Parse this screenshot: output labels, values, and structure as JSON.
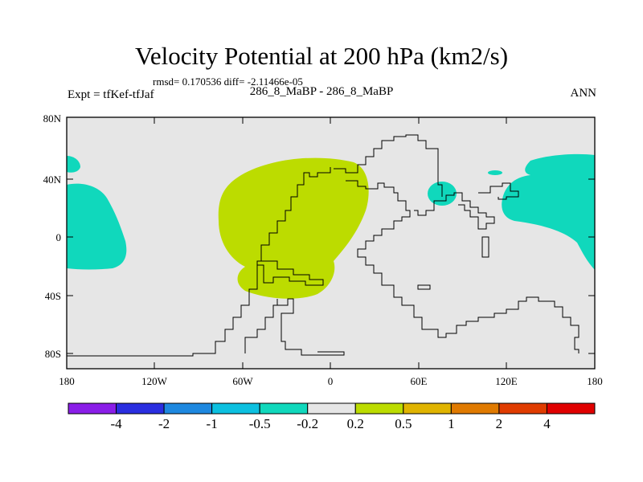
{
  "title": "Velocity Potential at 200 hPa (km2/s)",
  "stats": "rmsd= 0.170536 diff= -2.11466e-05",
  "experiment": "Expt = tfKef-tfJaf",
  "cases": "286_8_MaBP - 286_8_MaBP",
  "season": "ANN",
  "lat_ticks": [
    "80N",
    "40N",
    "0",
    "40S",
    "80S"
  ],
  "lon_ticks": [
    "180",
    "120W",
    "60W",
    "0",
    "60E",
    "120E",
    "180"
  ],
  "colorbar": {
    "labels": [
      "-4",
      "-2",
      "-1",
      "-0.5",
      "-0.2",
      "0.2",
      "0.5",
      "1",
      "2",
      "4"
    ],
    "colors": [
      "#8a1ee8",
      "#2a2ee0",
      "#1e88e0",
      "#0cc0e0",
      "#10d8bc",
      "#e6e6e6",
      "#bcdc00",
      "#e0b400",
      "#e07a00",
      "#e03c00",
      "#e00000"
    ]
  },
  "colors": {
    "background": "#e6e6e6",
    "positive_fill": "#bcdc00",
    "negative_fill": "#10d8bc",
    "coastline": "#000000"
  }
}
